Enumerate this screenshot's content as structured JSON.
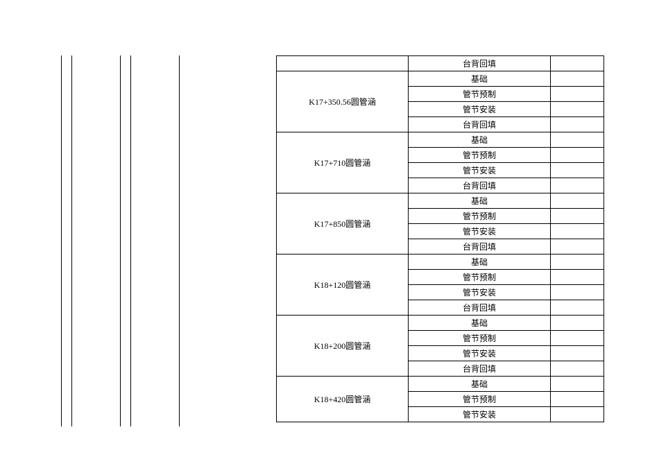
{
  "layout": {
    "verticalRuleXs": [
      88,
      103,
      173,
      188,
      258
    ]
  },
  "groups": [
    {
      "label": "K17+350.56圆管涵",
      "items": [
        "基础",
        "管节预制",
        "管节安装",
        "台背回填"
      ]
    },
    {
      "label": "K17+710圆管涵",
      "items": [
        "基础",
        "管节预制",
        "管节安装",
        "台背回填"
      ]
    },
    {
      "label": "K17+850圆管涵",
      "items": [
        "基础",
        "管节预制",
        "管节安装",
        "台背回填"
      ]
    },
    {
      "label": "K18+120圆管涵",
      "items": [
        "基础",
        "管节预制",
        "管节安装",
        "台背回填"
      ]
    },
    {
      "label": "K18+200圆管涵",
      "items": [
        "基础",
        "管节预制",
        "管节安装",
        "台背回填"
      ]
    },
    {
      "label": "K18+420圆管涵",
      "items": [
        "基础",
        "管节预制",
        "管节安装"
      ]
    }
  ],
  "orphanFirstItem": "台背回填"
}
